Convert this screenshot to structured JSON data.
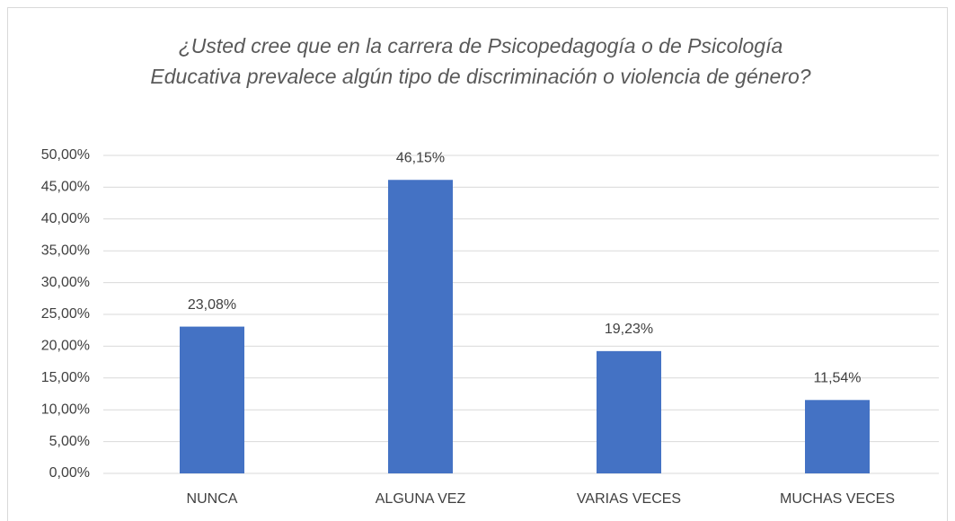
{
  "chart_data": {
    "type": "bar",
    "title": "¿Usted cree que en la carrera de Psicopedagogía o de Psicología Educativa  prevalece algún tipo de discriminación o violencia de género?",
    "categories": [
      "NUNCA",
      "ALGUNA VEZ",
      "VARIAS VECES",
      "MUCHAS VECES"
    ],
    "values": [
      23.08,
      46.15,
      19.23,
      11.54
    ],
    "value_labels": [
      "23,08%",
      "46,15%",
      "19,23%",
      "11,54%"
    ],
    "color": "#4472c4",
    "ylim": [
      0,
      50
    ],
    "yticks": [
      {
        "value": 0,
        "label": "0,00%"
      },
      {
        "value": 5,
        "label": "5,00%"
      },
      {
        "value": 10,
        "label": "10,00%"
      },
      {
        "value": 15,
        "label": "15,00%"
      },
      {
        "value": 20,
        "label": "20,00%"
      },
      {
        "value": 25,
        "label": "25,00%"
      },
      {
        "value": 30,
        "label": "30,00%"
      },
      {
        "value": 35,
        "label": "35,00%"
      },
      {
        "value": 40,
        "label": "40,00%"
      },
      {
        "value": 45,
        "label": "45,00%"
      },
      {
        "value": 50,
        "label": "50,00%"
      }
    ],
    "grid": true
  }
}
